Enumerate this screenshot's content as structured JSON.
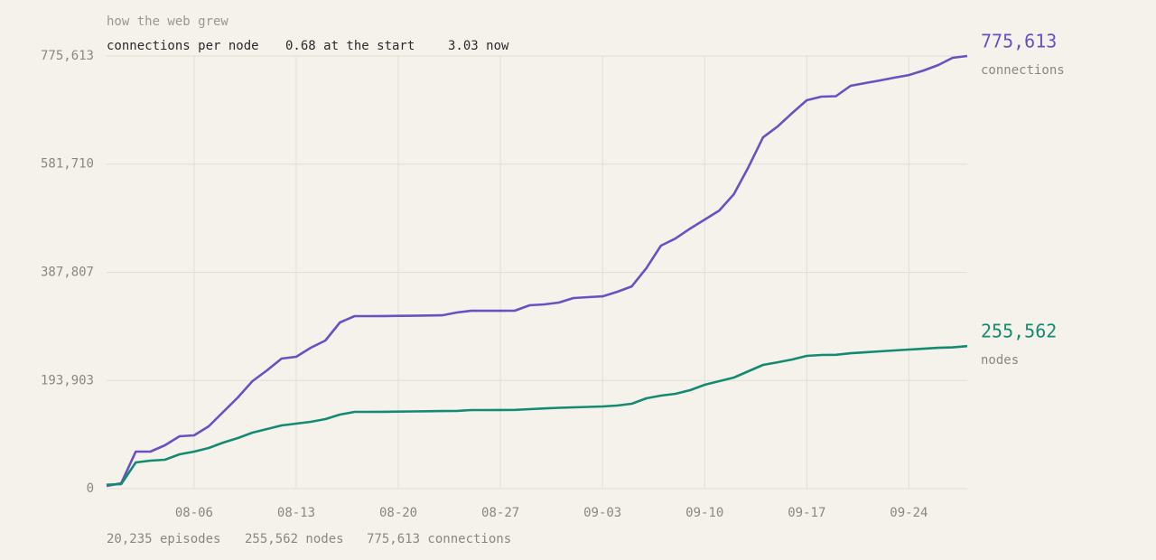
{
  "chart_data": {
    "type": "line",
    "title": "how the web grew",
    "subtitle": {
      "label": "connections per node",
      "start": "0.68 at the start",
      "now": "3.03 now"
    },
    "footer": [
      "20,235 episodes",
      "255,562 nodes",
      "775,613 connections"
    ],
    "x": [
      "07-31",
      "08-01",
      "08-02",
      "08-03",
      "08-04",
      "08-05",
      "08-06",
      "08-07",
      "08-08",
      "08-09",
      "08-10",
      "08-11",
      "08-12",
      "08-13",
      "08-14",
      "08-15",
      "08-16",
      "08-17",
      "08-18",
      "08-19",
      "08-20",
      "08-21",
      "08-22",
      "08-23",
      "08-24",
      "08-25",
      "08-26",
      "08-27",
      "08-28",
      "08-29",
      "08-30",
      "08-31",
      "09-01",
      "09-02",
      "09-03",
      "09-04",
      "09-05",
      "09-06",
      "09-07",
      "09-08",
      "09-09",
      "09-10",
      "09-11",
      "09-12",
      "09-13",
      "09-14",
      "09-15",
      "09-16",
      "09-17",
      "09-18",
      "09-19",
      "09-20",
      "09-21",
      "09-22",
      "09-23",
      "09-24",
      "09-25",
      "09-26",
      "09-27",
      "09-28"
    ],
    "series": [
      {
        "name": "connections",
        "color": "#6a50c2",
        "last_label": "775,613",
        "values": [
          4800,
          9700,
          66400,
          66400,
          77700,
          93900,
          95500,
          111700,
          137600,
          163500,
          192700,
          212100,
          233100,
          236400,
          252600,
          265500,
          297900,
          309200,
          309200,
          309500,
          309800,
          310000,
          310400,
          310800,
          315700,
          318900,
          318900,
          318900,
          319200,
          328700,
          330300,
          333500,
          341600,
          343200,
          344800,
          352900,
          362600,
          395000,
          435500,
          448400,
          466200,
          482400,
          498600,
          527800,
          576300,
          629800,
          649200,
          673500,
          696200,
          702700,
          703500,
          722100,
          727000,
          731800,
          736700,
          741500,
          749600,
          759300,
          772400,
          775613
        ]
      },
      {
        "name": "nodes",
        "color": "#148a72",
        "last_label": "255,562",
        "values": [
          7000,
          8100,
          47000,
          50200,
          51800,
          61500,
          66400,
          72900,
          82600,
          90700,
          100400,
          106900,
          113300,
          116600,
          119800,
          124700,
          132800,
          137600,
          137600,
          137800,
          138100,
          138400,
          138800,
          139100,
          139300,
          140900,
          140900,
          141000,
          141200,
          142500,
          143800,
          144900,
          145700,
          146500,
          147400,
          149000,
          152200,
          161900,
          166800,
          170000,
          176500,
          186200,
          192700,
          199100,
          210500,
          221800,
          226600,
          231500,
          238000,
          239600,
          239900,
          242800,
          244400,
          246100,
          247700,
          249300,
          250900,
          252500,
          253300,
          255562
        ]
      }
    ],
    "xlim": [
      "07-31",
      "09-28"
    ],
    "xticks": [
      "08-06",
      "08-13",
      "08-20",
      "08-27",
      "09-03",
      "09-10",
      "09-17",
      "09-24"
    ],
    "ylim": [
      0,
      775613
    ],
    "yticks": [
      0,
      {
        "value": 193903,
        "label": "193,903"
      },
      {
        "value": 387807,
        "label": "387,807"
      },
      {
        "value": 581710,
        "label": "581,710"
      },
      {
        "value": 775613,
        "label": "775,613"
      }
    ],
    "grid": true
  }
}
